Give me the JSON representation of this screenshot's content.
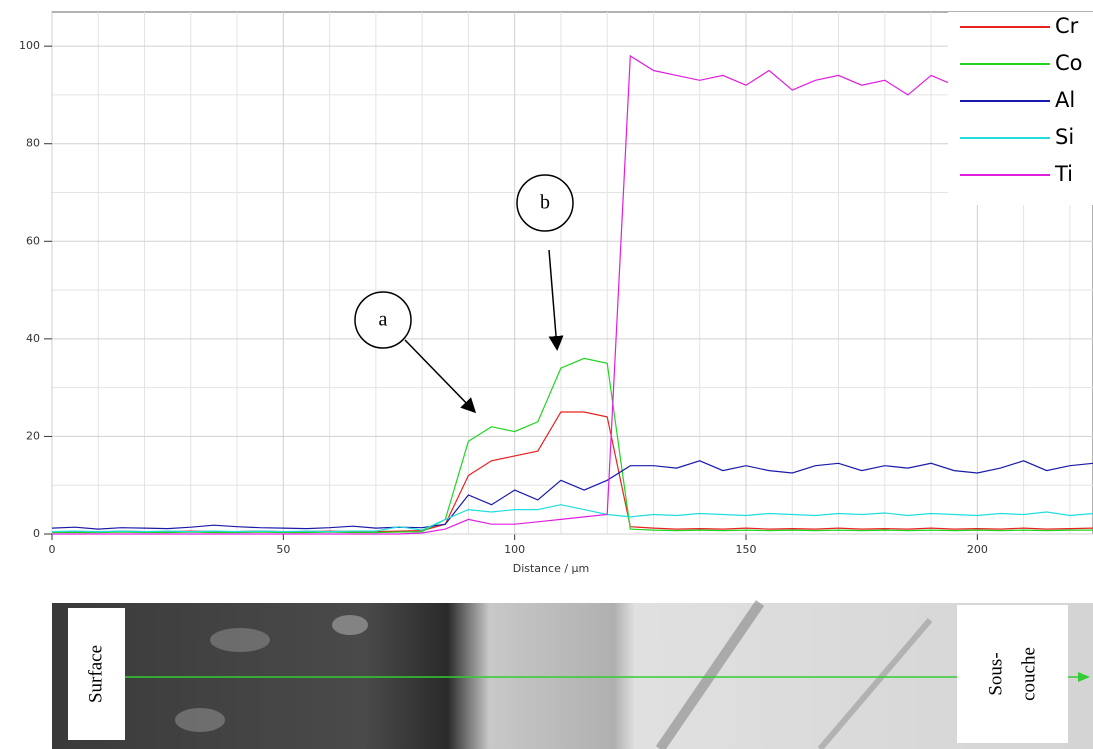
{
  "chart_data": {
    "type": "line",
    "x_label": "Distance / µm",
    "x": [
      0,
      5,
      10,
      15,
      20,
      25,
      30,
      35,
      40,
      45,
      50,
      55,
      60,
      65,
      70,
      75,
      80,
      85,
      90,
      95,
      100,
      105,
      110,
      115,
      120,
      125,
      130,
      135,
      140,
      145,
      150,
      155,
      160,
      165,
      170,
      175,
      180,
      185,
      190,
      195,
      200,
      205,
      210,
      215,
      220,
      225
    ],
    "series": [
      {
        "name": "Cr",
        "color": "#e8201e",
        "values": [
          0.5,
          0.5,
          0.4,
          0.6,
          0.5,
          0.5,
          0.6,
          0.5,
          0.5,
          0.6,
          0.5,
          0.5,
          0.6,
          0.5,
          0.5,
          0.6,
          0.7,
          2,
          12,
          15,
          16,
          17,
          25,
          25,
          24,
          1.5,
          1.2,
          1,
          1.1,
          1,
          1.2,
          1,
          1.1,
          1,
          1.2,
          1,
          1.1,
          1,
          1.2,
          1,
          1.1,
          1,
          1.2,
          1,
          1.1,
          1.2
        ]
      },
      {
        "name": "Co",
        "color": "#22d422",
        "values": [
          0.3,
          0.3,
          0.3,
          0.4,
          0.3,
          0.3,
          0.4,
          0.3,
          0.3,
          0.4,
          0.3,
          0.3,
          0.4,
          0.3,
          0.3,
          0.4,
          0.5,
          3,
          19,
          22,
          21,
          23,
          34,
          36,
          35,
          1,
          0.8,
          0.7,
          0.8,
          0.7,
          0.8,
          0.7,
          0.8,
          0.7,
          0.8,
          0.7,
          0.8,
          0.7,
          0.8,
          0.7,
          0.8,
          0.7,
          0.8,
          0.7,
          0.8,
          0.8
        ]
      },
      {
        "name": "Al",
        "color": "#1a1aaa",
        "values": [
          1.2,
          1.4,
          1,
          1.3,
          1.2,
          1.1,
          1.4,
          1.8,
          1.5,
          1.3,
          1.2,
          1.1,
          1.3,
          1.6,
          1.2,
          1.4,
          1.3,
          2,
          8,
          6,
          9,
          7,
          11,
          9,
          11,
          14,
          14,
          13.5,
          15,
          13,
          14,
          13,
          12.5,
          14,
          14.5,
          13,
          14,
          13.5,
          14.5,
          13,
          12.5,
          13.5,
          15,
          13,
          14,
          14.5
        ]
      },
      {
        "name": "Si",
        "color": "#22dddd",
        "values": [
          0.5,
          0.6,
          0.5,
          0.6,
          0.5,
          0.6,
          0.5,
          0.6,
          0.5,
          0.6,
          0.5,
          0.6,
          0.5,
          0.6,
          0.6,
          1.5,
          0.8,
          3,
          5,
          4.5,
          5,
          5,
          6,
          5,
          4,
          3.5,
          4,
          3.8,
          4.2,
          4,
          3.8,
          4.2,
          4,
          3.8,
          4.2,
          4,
          4.3,
          3.8,
          4.2,
          4,
          3.8,
          4.2,
          4,
          4.5,
          3.8,
          4.2
        ]
      },
      {
        "name": "Ti",
        "color": "#e01ee0",
        "values": [
          0,
          0,
          0,
          0,
          0,
          0,
          0,
          0,
          0,
          0,
          0,
          0,
          0,
          0,
          0,
          0,
          0.2,
          1,
          3,
          2,
          2,
          2.5,
          3,
          3.5,
          4,
          98,
          95,
          94,
          93,
          94,
          92,
          95,
          91,
          93,
          94,
          92,
          93,
          90,
          94,
          92,
          95,
          93,
          91,
          94,
          92,
          93
        ]
      }
    ],
    "xlim": [
      0,
      225
    ],
    "ylim": [
      0,
      107
    ],
    "xticks": [
      0,
      50,
      100,
      150,
      200
    ],
    "yticks": [
      0,
      20,
      40,
      60,
      80,
      100
    ],
    "xgrid": [
      10,
      20,
      30,
      40,
      60,
      70,
      80,
      90,
      110,
      120,
      130,
      140,
      160,
      170,
      180,
      190,
      210,
      220
    ],
    "ygrid": [
      10,
      30,
      50,
      70,
      90
    ],
    "grid": true,
    "legend": "upper right",
    "annotations": [
      "a",
      "b"
    ],
    "image_labels": {
      "left": "Surface",
      "right": [
        "Sous-",
        "couche"
      ]
    }
  }
}
